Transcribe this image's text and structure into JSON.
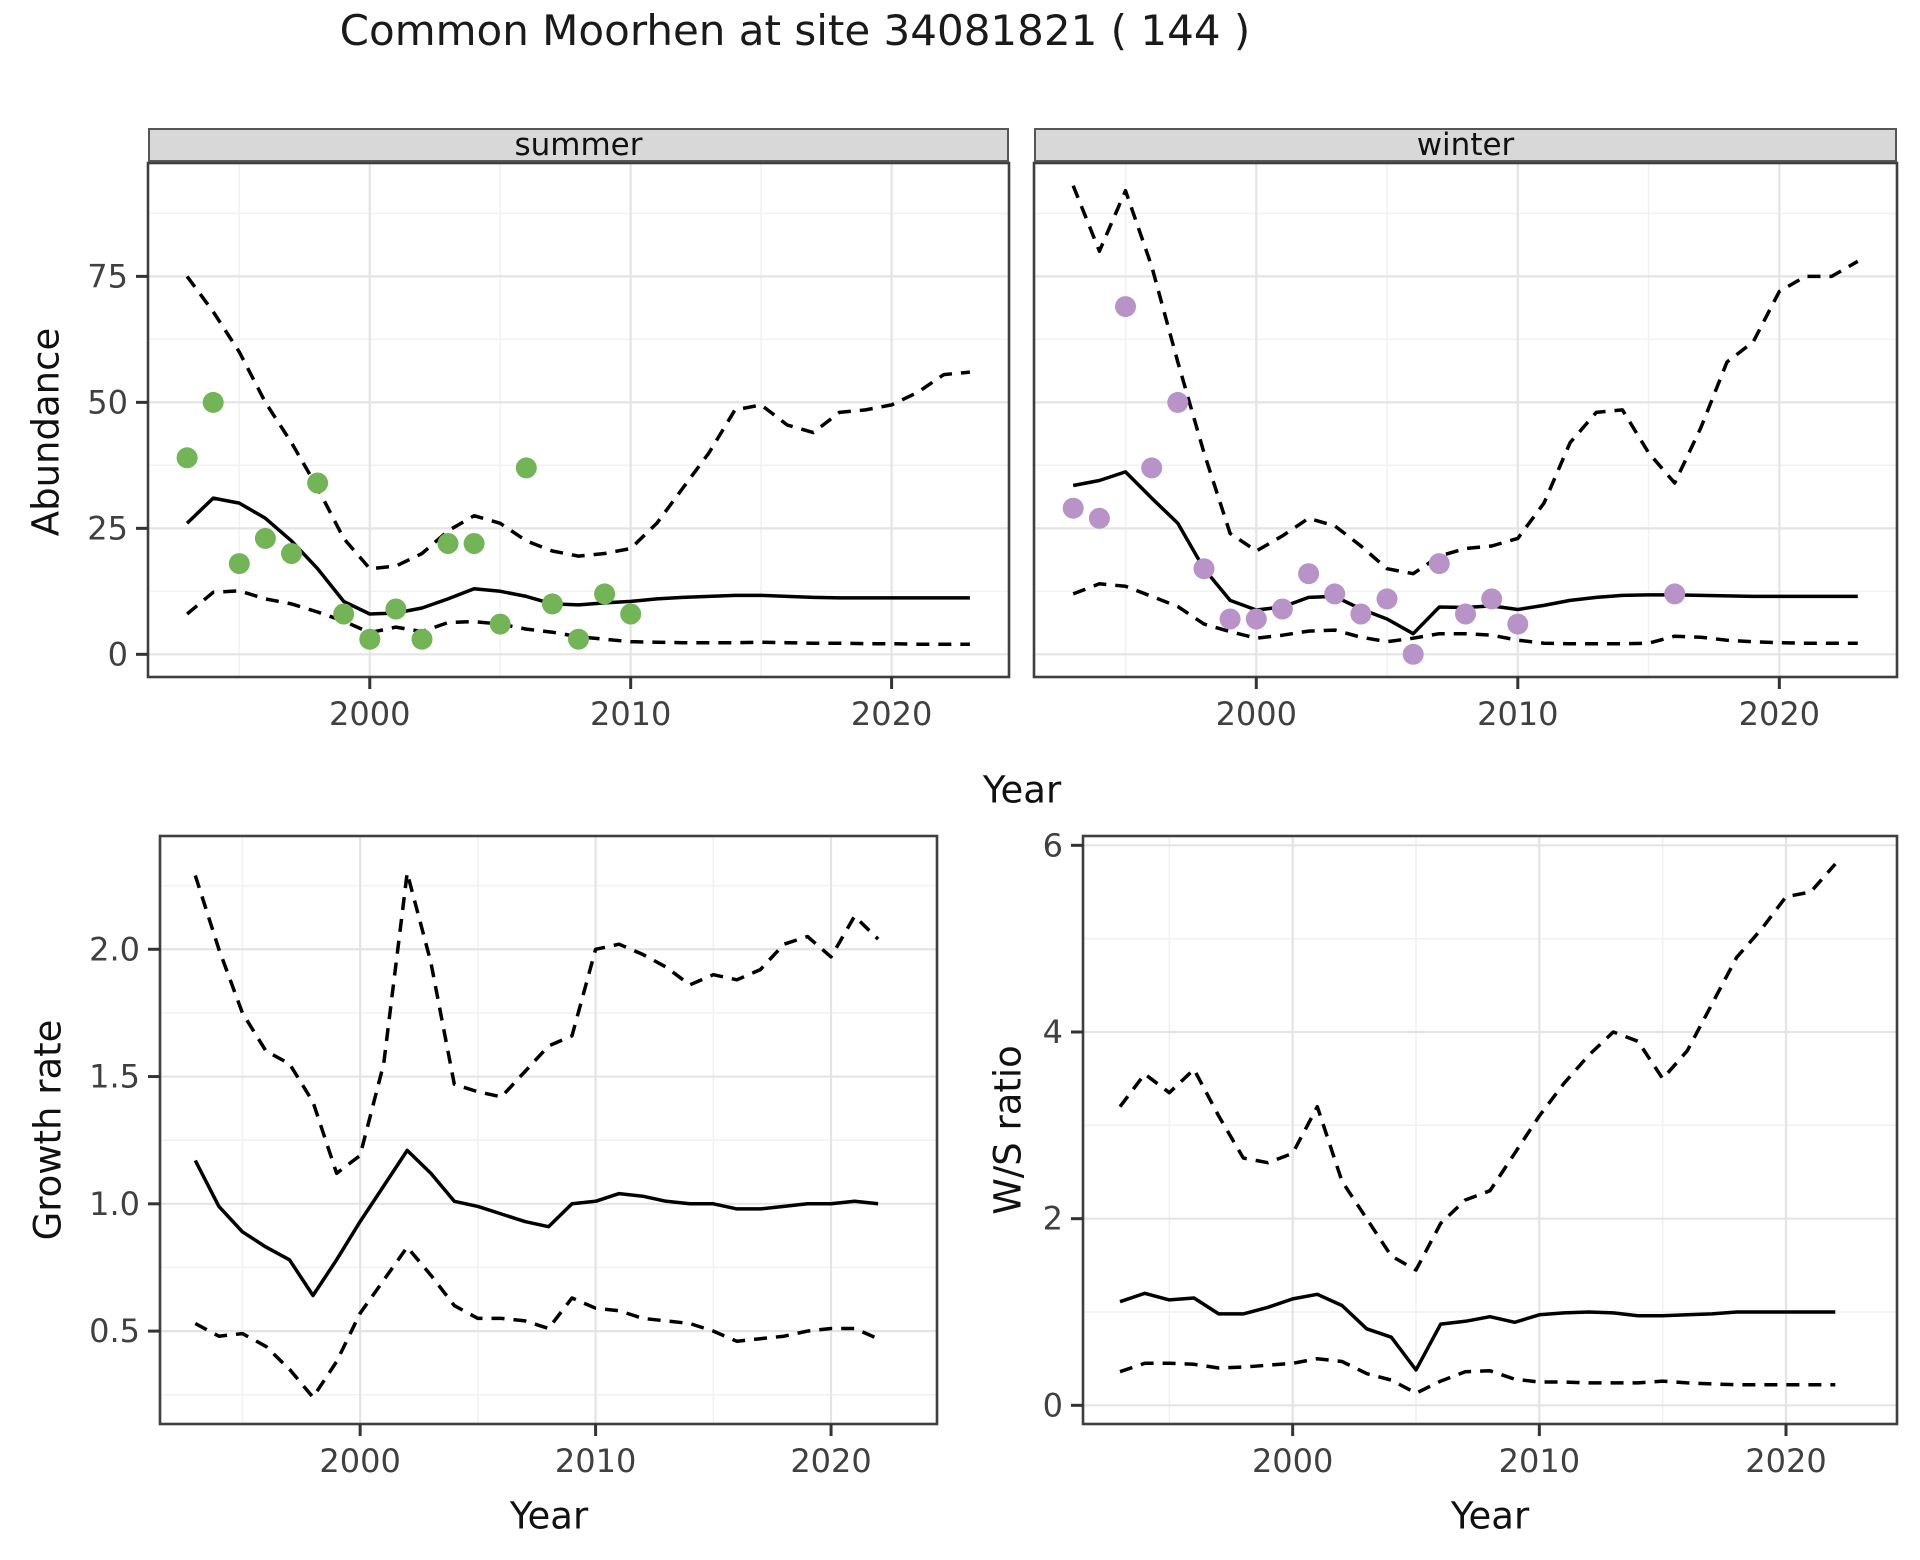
{
  "title": "Common Moorhen at site 34081821 ( 144 )",
  "axis_titles": {
    "abundance_y": "Abundance",
    "growth_y": "Growth rate",
    "ws_y": "W/S ratio",
    "x_top": "Year",
    "x_growth": "Year",
    "x_ws": "Year"
  },
  "colors": {
    "summer_points": "#72b456",
    "winter_points": "#b793c8",
    "line": "#000000",
    "strip_bg": "#d8d8d8",
    "grid_major": "#e4e4e4",
    "grid_minor": "#f2f2f2",
    "panel_border": "#3f3f3f",
    "tick_text": "#404040"
  },
  "chart_data": [
    {
      "id": "abundance",
      "type": "line",
      "ylabel": "Abundance",
      "xlabel": "Year",
      "xlim": [
        1991.5,
        2024.5
      ],
      "ylim": [
        -4.5,
        97.5
      ],
      "xticks": [
        2000,
        2010,
        2020
      ],
      "xtick_labels": [
        "2000",
        "2010",
        "2020"
      ],
      "xticks_minor": [
        1995,
        2005,
        2015
      ],
      "yticks": [
        0,
        25,
        50,
        75
      ],
      "ytick_labels": [
        "0",
        "25",
        "50",
        "75"
      ],
      "yticks_minor": [
        12.5,
        37.5,
        62.5,
        87.5
      ],
      "legend": "none",
      "grid": true,
      "facets": [
        {
          "label": "summer",
          "point_color": "#72b456",
          "points": {
            "years": [
              1993,
              1994,
              1995,
              1996,
              1997,
              1998,
              1999,
              2000,
              2001,
              2002,
              2003,
              2004,
              2005,
              2006,
              2007,
              2008,
              2009,
              2010
            ],
            "values": [
              39,
              50,
              18,
              23,
              20,
              34,
              8,
              3,
              9,
              3,
              22,
              22,
              6,
              37,
              10,
              3,
              12,
              8
            ]
          },
          "model_years": [
            1993,
            1994,
            1995,
            1996,
            1997,
            1998,
            1999,
            2000,
            2001,
            2002,
            2003,
            2004,
            2005,
            2006,
            2007,
            2008,
            2009,
            2010,
            2011,
            2012,
            2013,
            2014,
            2015,
            2016,
            2017,
            2018,
            2019,
            2020,
            2021,
            2022,
            2023
          ],
          "series": [
            {
              "name": "fit",
              "style": "solid",
              "values": [
                26,
                31,
                30,
                27,
                22.5,
                17,
                10.5,
                8,
                8.2,
                9.2,
                11,
                13,
                12.5,
                11.5,
                10,
                9.8,
                10.2,
                10.5,
                11,
                11.3,
                11.5,
                11.7,
                11.7,
                11.5,
                11.3,
                11.2,
                11.2,
                11.2,
                11.2,
                11.2,
                11.2
              ]
            },
            {
              "name": "upper_ci",
              "style": "dashed",
              "values": [
                75,
                68,
                60,
                50,
                42,
                33,
                23,
                17,
                17.5,
                20,
                24.5,
                27.5,
                26,
                22.5,
                20.5,
                19.5,
                20,
                21,
                26,
                33,
                40,
                48.5,
                49.5,
                45.5,
                44,
                48,
                48.5,
                49.5,
                52,
                55.5,
                56
              ]
            },
            {
              "name": "lower_ci",
              "style": "dashed",
              "values": [
                8,
                12.3,
                12.6,
                11,
                10,
                8.4,
                6.6,
                4.3,
                5.4,
                4.5,
                6.3,
                6.5,
                6,
                5,
                4.4,
                3.5,
                3,
                2.5,
                2.4,
                2.3,
                2.3,
                2.3,
                2.4,
                2.3,
                2.2,
                2.2,
                2.1,
                2.1,
                2,
                2,
                2
              ]
            }
          ]
        },
        {
          "label": "winter",
          "point_color": "#b793c8",
          "points": {
            "years": [
              1993,
              1994,
              1995,
              1996,
              1997,
              1998,
              1999,
              2000,
              2001,
              2002,
              2003,
              2004,
              2005,
              2006,
              2007,
              2008,
              2009,
              2010,
              2016
            ],
            "values": [
              29,
              27,
              69,
              37,
              50,
              17,
              7,
              7,
              9,
              16,
              12,
              8,
              11,
              0,
              18,
              8,
              11,
              6,
              12
            ]
          },
          "model_years": [
            1993,
            1994,
            1995,
            1996,
            1997,
            1998,
            1999,
            2000,
            2001,
            2002,
            2003,
            2004,
            2005,
            2006,
            2007,
            2008,
            2009,
            2010,
            2011,
            2012,
            2013,
            2014,
            2015,
            2016,
            2017,
            2018,
            2019,
            2020,
            2021,
            2022,
            2023
          ],
          "series": [
            {
              "name": "fit",
              "style": "solid",
              "values": [
                33.5,
                34.5,
                36.2,
                31,
                26,
                17,
                10.7,
                8.8,
                9.4,
                11.3,
                11.5,
                9,
                7,
                4.1,
                9.4,
                9.3,
                9.6,
                8.9,
                9.7,
                10.7,
                11.3,
                11.7,
                11.8,
                11.8,
                11.7,
                11.6,
                11.5,
                11.5,
                11.5,
                11.5,
                11.5
              ]
            },
            {
              "name": "upper_ci",
              "style": "dashed",
              "values": [
                93,
                80,
                92,
                77,
                58,
                40,
                24,
                20.5,
                23.5,
                27,
                25.5,
                21.5,
                17,
                16,
                19.5,
                21,
                21.5,
                23,
                30,
                42,
                48,
                48.5,
                40,
                34,
                45,
                58,
                62,
                72,
                75,
                75,
                78
              ]
            },
            {
              "name": "lower_ci",
              "style": "dashed",
              "values": [
                12,
                14,
                13.5,
                11.5,
                9.5,
                6,
                4.5,
                3.2,
                3.8,
                4.6,
                4.8,
                3.4,
                2.5,
                3.2,
                4.1,
                4.1,
                3.8,
                2.8,
                2.2,
                2.1,
                2.1,
                2.1,
                2.2,
                3.6,
                3.4,
                2.8,
                2.5,
                2.3,
                2.2,
                2.2,
                2.2
              ]
            }
          ]
        }
      ]
    },
    {
      "id": "growth",
      "type": "line",
      "ylabel": "Growth rate",
      "xlabel": "Year",
      "xlim": [
        1991.5,
        2024.5
      ],
      "ylim": [
        0.135,
        2.445
      ],
      "xticks": [
        2000,
        2010,
        2020
      ],
      "xtick_labels": [
        "2000",
        "2010",
        "2020"
      ],
      "xticks_minor": [
        1995,
        2005,
        2015
      ],
      "yticks": [
        0.5,
        1.0,
        1.5,
        2.0
      ],
      "ytick_labels": [
        "0.5",
        "1.0",
        "1.5",
        "2.0"
      ],
      "yticks_minor": [
        0.25,
        0.75,
        1.25,
        1.75,
        2.25
      ],
      "legend": "none",
      "grid": true,
      "model_years": [
        1993,
        1994,
        1995,
        1996,
        1997,
        1998,
        1999,
        2000,
        2001,
        2002,
        2003,
        2004,
        2005,
        2006,
        2007,
        2008,
        2009,
        2010,
        2011,
        2012,
        2013,
        2014,
        2015,
        2016,
        2017,
        2018,
        2019,
        2020,
        2021,
        2022
      ],
      "series": [
        {
          "name": "fit",
          "style": "solid",
          "values": [
            1.17,
            0.99,
            0.89,
            0.83,
            0.78,
            0.64,
            0.78,
            0.93,
            1.07,
            1.21,
            1.12,
            1.01,
            0.99,
            0.96,
            0.93,
            0.91,
            1.0,
            1.01,
            1.04,
            1.03,
            1.01,
            1.0,
            1.0,
            0.98,
            0.98,
            0.99,
            1.0,
            1.0,
            1.01,
            1.0
          ]
        },
        {
          "name": "upper_ci",
          "style": "dashed",
          "values": [
            2.29,
            2.0,
            1.75,
            1.6,
            1.55,
            1.4,
            1.12,
            1.19,
            1.55,
            2.3,
            1.95,
            1.47,
            1.44,
            1.42,
            1.52,
            1.62,
            1.66,
            2.0,
            2.02,
            1.98,
            1.93,
            1.86,
            1.9,
            1.88,
            1.92,
            2.02,
            2.05,
            1.97,
            2.13,
            2.04
          ]
        },
        {
          "name": "lower_ci",
          "style": "dashed",
          "values": [
            0.53,
            0.48,
            0.49,
            0.44,
            0.35,
            0.24,
            0.38,
            0.57,
            0.7,
            0.83,
            0.72,
            0.6,
            0.55,
            0.55,
            0.54,
            0.51,
            0.63,
            0.59,
            0.58,
            0.55,
            0.54,
            0.53,
            0.5,
            0.46,
            0.47,
            0.48,
            0.5,
            0.51,
            0.51,
            0.47
          ]
        }
      ]
    },
    {
      "id": "ws_ratio",
      "type": "line",
      "ylabel": "W/S ratio",
      "xlabel": "Year",
      "xlim": [
        1991.5,
        2024.5
      ],
      "ylim": [
        -0.2,
        6.1
      ],
      "xticks": [
        2000,
        2010,
        2020
      ],
      "xtick_labels": [
        "2000",
        "2010",
        "2020"
      ],
      "xticks_minor": [
        1995,
        2005,
        2015
      ],
      "yticks": [
        0,
        2,
        4,
        6
      ],
      "ytick_labels": [
        "0",
        "2",
        "4",
        "6"
      ],
      "yticks_minor": [
        1,
        3,
        5
      ],
      "legend": "none",
      "grid": true,
      "model_years": [
        1993,
        1994,
        1995,
        1996,
        1997,
        1998,
        1999,
        2000,
        2001,
        2002,
        2003,
        2004,
        2005,
        2006,
        2007,
        2008,
        2009,
        2010,
        2011,
        2012,
        2013,
        2014,
        2015,
        2016,
        2017,
        2018,
        2019,
        2020,
        2021,
        2022
      ],
      "series": [
        {
          "name": "fit",
          "style": "solid",
          "values": [
            1.11,
            1.2,
            1.13,
            1.15,
            0.98,
            0.98,
            1.05,
            1.14,
            1.19,
            1.07,
            0.82,
            0.73,
            0.38,
            0.87,
            0.9,
            0.95,
            0.89,
            0.97,
            0.99,
            1.0,
            0.99,
            0.96,
            0.96,
            0.97,
            0.98,
            1.0,
            1.0,
            1.0,
            1.0,
            1.0
          ]
        },
        {
          "name": "upper_ci",
          "style": "dashed",
          "values": [
            3.2,
            3.55,
            3.35,
            3.6,
            3.1,
            2.65,
            2.6,
            2.7,
            3.2,
            2.4,
            2.0,
            1.6,
            1.45,
            1.95,
            2.2,
            2.3,
            2.7,
            3.1,
            3.45,
            3.75,
            4.0,
            3.9,
            3.5,
            3.8,
            4.3,
            4.8,
            5.1,
            5.45,
            5.5,
            5.8
          ]
        },
        {
          "name": "lower_ci",
          "style": "dashed",
          "values": [
            0.36,
            0.45,
            0.45,
            0.44,
            0.4,
            0.41,
            0.43,
            0.45,
            0.5,
            0.47,
            0.34,
            0.27,
            0.13,
            0.26,
            0.36,
            0.37,
            0.28,
            0.25,
            0.25,
            0.24,
            0.24,
            0.24,
            0.26,
            0.24,
            0.23,
            0.22,
            0.22,
            0.22,
            0.22,
            0.22
          ]
        }
      ]
    }
  ]
}
